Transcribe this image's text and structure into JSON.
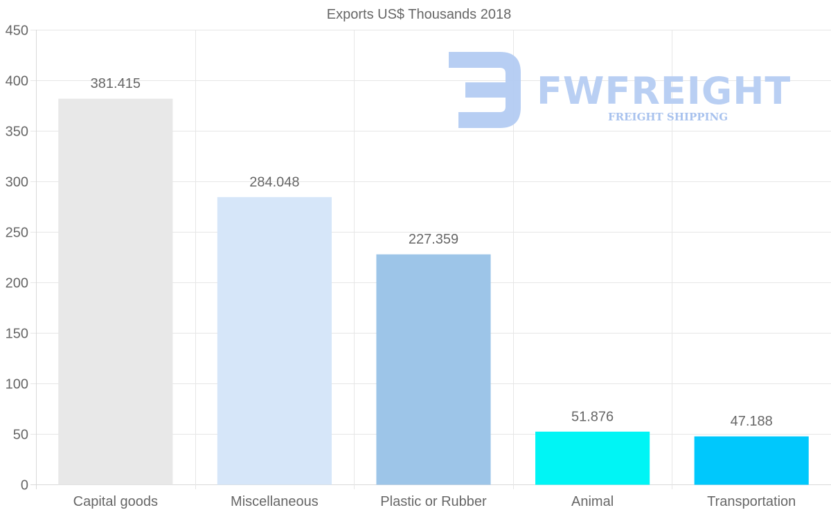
{
  "chart_data": {
    "type": "bar",
    "title": "Exports US$ Thousands 2018",
    "categories": [
      "Capital goods",
      "Miscellaneous",
      "Plastic or Rubber",
      "Animal",
      "Transportation"
    ],
    "values": [
      381.415,
      284.048,
      227.359,
      51.876,
      47.188
    ],
    "value_labels": [
      "381.415",
      "284.048",
      "227.359",
      "51.876",
      "47.188"
    ],
    "colors": [
      "#e8e8e8",
      "#d6e6f9",
      "#9dc5e8",
      "#00f5f5",
      "#00c8fc"
    ],
    "ylim": [
      0,
      450
    ],
    "yticks": [
      0,
      50,
      100,
      150,
      200,
      250,
      300,
      350,
      400,
      450
    ],
    "xlabel": "",
    "ylabel": "",
    "grid": true,
    "legend": "none"
  },
  "watermark": {
    "brand": "FWFREIGHT",
    "tagline": "FREIGHT SHIPPING",
    "icon": "fw-logo-icon",
    "color": "#b3cbf2"
  }
}
